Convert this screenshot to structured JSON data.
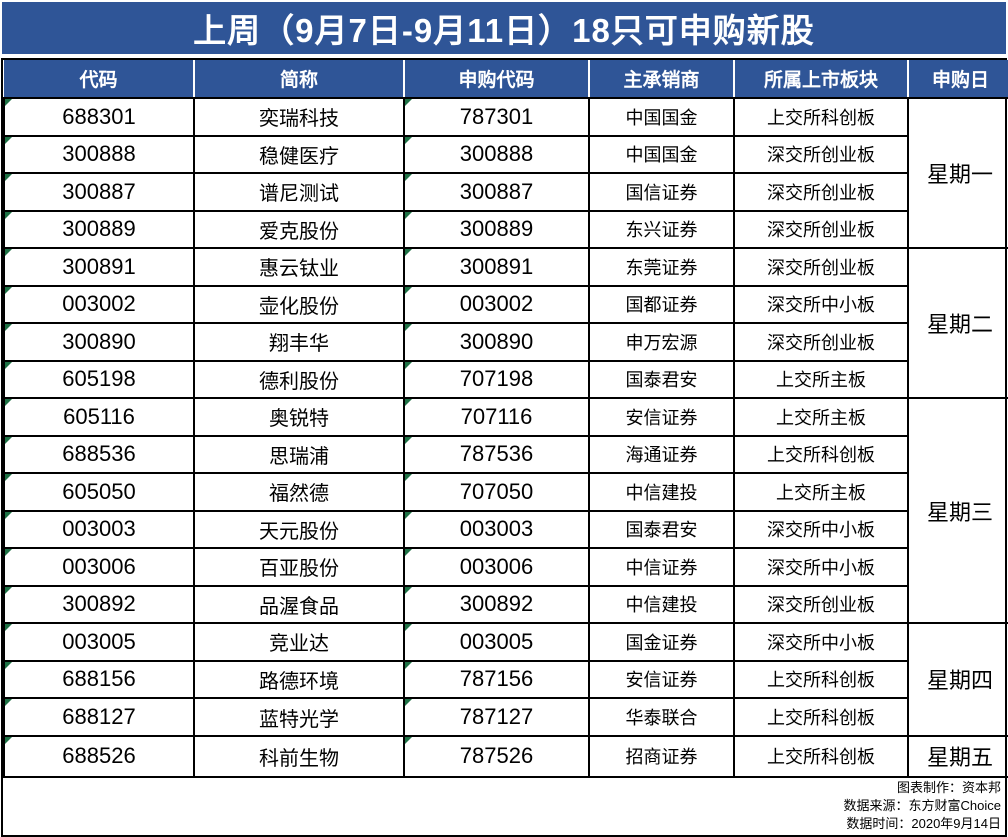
{
  "title": "上周（9月7日-9月11日）18只可申购新股",
  "colors": {
    "header_blue": "#2F5597",
    "grid_black": "#000000",
    "flag_green": "#1E7145",
    "header_text": "#FFFFFF",
    "body_text": "#000000"
  },
  "footer": {
    "maker": "图表制作：资本邦",
    "source": "数据来源：东方财富Choice",
    "time": "数据时间：2020年9月14日"
  },
  "chart_data": {
    "type": "table",
    "title": "上周（9月7日-9月11日）18只可申购新股",
    "columns": [
      "代码",
      "简称",
      "申购代码",
      "主承销商",
      "所属上市板块",
      "申购日"
    ],
    "rows": [
      {
        "code": "688301",
        "name": "奕瑞科技",
        "sub_code": "787301",
        "underwriter": "中国国金",
        "board": "上交所科创板"
      },
      {
        "code": "300888",
        "name": "稳健医疗",
        "sub_code": "300888",
        "underwriter": "中国国金",
        "board": "深交所创业板"
      },
      {
        "code": "300887",
        "name": "谱尼测试",
        "sub_code": "300887",
        "underwriter": "国信证券",
        "board": "深交所创业板"
      },
      {
        "code": "300889",
        "name": "爱克股份",
        "sub_code": "300889",
        "underwriter": "东兴证券",
        "board": "深交所创业板"
      },
      {
        "code": "300891",
        "name": "惠云钛业",
        "sub_code": "300891",
        "underwriter": "东莞证券",
        "board": "深交所创业板"
      },
      {
        "code": "003002",
        "name": "壶化股份",
        "sub_code": "003002",
        "underwriter": "国都证券",
        "board": "深交所中小板"
      },
      {
        "code": "300890",
        "name": "翔丰华",
        "sub_code": "300890",
        "underwriter": "申万宏源",
        "board": "深交所创业板"
      },
      {
        "code": "605198",
        "name": "德利股份",
        "sub_code": "707198",
        "underwriter": "国泰君安",
        "board": "上交所主板"
      },
      {
        "code": "605116",
        "name": "奥锐特",
        "sub_code": "707116",
        "underwriter": "安信证券",
        "board": "上交所主板"
      },
      {
        "code": "688536",
        "name": "思瑞浦",
        "sub_code": "787536",
        "underwriter": "海通证券",
        "board": "上交所科创板"
      },
      {
        "code": "605050",
        "name": "福然德",
        "sub_code": "707050",
        "underwriter": "中信建投",
        "board": "上交所主板"
      },
      {
        "code": "003003",
        "name": "天元股份",
        "sub_code": "003003",
        "underwriter": "国泰君安",
        "board": "深交所中小板"
      },
      {
        "code": "003006",
        "name": "百亚股份",
        "sub_code": "003006",
        "underwriter": "中信证券",
        "board": "深交所中小板"
      },
      {
        "code": "300892",
        "name": "品渥食品",
        "sub_code": "300892",
        "underwriter": "中信建投",
        "board": "深交所创业板"
      },
      {
        "code": "003005",
        "name": "竞业达",
        "sub_code": "003005",
        "underwriter": "国金证券",
        "board": "深交所中小板"
      },
      {
        "code": "688156",
        "name": "路德环境",
        "sub_code": "787156",
        "underwriter": "安信证券",
        "board": "上交所科创板"
      },
      {
        "code": "688127",
        "name": "蓝特光学",
        "sub_code": "787127",
        "underwriter": "华泰联合",
        "board": "上交所科创板"
      },
      {
        "code": "688526",
        "name": "科前生物",
        "sub_code": "787526",
        "underwriter": "招商证券",
        "board": "上交所科创板"
      }
    ],
    "day_groups": [
      {
        "label": "星期一",
        "span": 4
      },
      {
        "label": "星期二",
        "span": 4
      },
      {
        "label": "星期三",
        "span": 6
      },
      {
        "label": "星期四",
        "span": 3
      },
      {
        "label": "星期五",
        "span": 1
      }
    ],
    "layout": {
      "grid": "on",
      "merged_day_column": true
    }
  }
}
